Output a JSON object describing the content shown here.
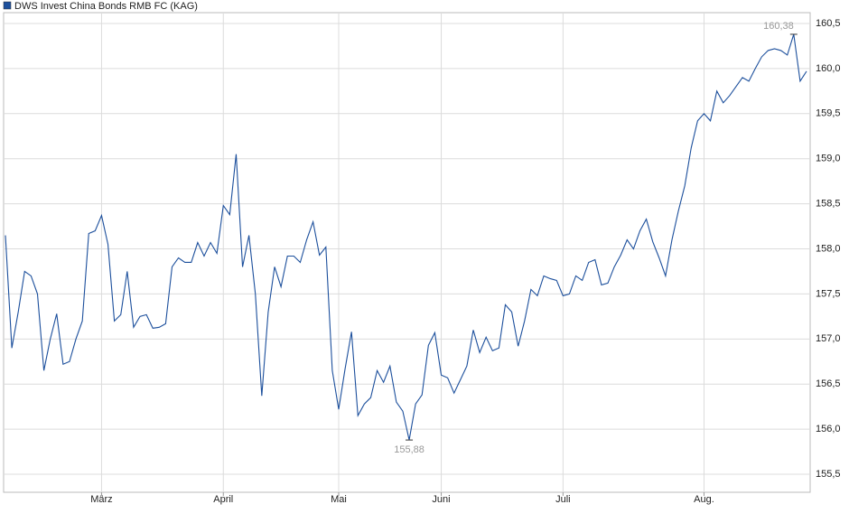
{
  "chart_data": {
    "type": "line",
    "categories": [
      null,
      null,
      null,
      null,
      null,
      null,
      null,
      null,
      null,
      null,
      null,
      null,
      null,
      null,
      null,
      "März",
      null,
      null,
      null,
      null,
      null,
      null,
      null,
      null,
      null,
      null,
      null,
      null,
      null,
      null,
      null,
      null,
      null,
      null,
      "April",
      null,
      null,
      null,
      null,
      null,
      null,
      null,
      null,
      null,
      null,
      null,
      null,
      null,
      null,
      null,
      null,
      null,
      "Mai",
      null,
      null,
      null,
      null,
      null,
      null,
      null,
      null,
      null,
      null,
      null,
      null,
      null,
      null,
      null,
      "Juni",
      null,
      null,
      null,
      null,
      null,
      null,
      null,
      null,
      null,
      null,
      null,
      null,
      null,
      null,
      null,
      null,
      null,
      null,
      "Juli",
      null,
      null,
      null,
      null,
      null,
      null,
      null,
      null,
      null,
      null,
      null,
      null,
      null,
      null,
      null,
      null,
      null,
      null,
      null,
      null,
      null,
      "Aug.",
      null,
      null,
      null,
      null,
      null,
      null,
      null,
      null,
      null,
      null,
      null,
      null,
      null,
      null,
      null,
      null
    ],
    "series": [
      {
        "name": "DWS Invest China Bonds RMB FC (KAG)",
        "color": "#1c4f9c",
        "values": [
          158.15,
          156.9,
          157.3,
          157.75,
          157.7,
          157.5,
          156.65,
          157.0,
          157.28,
          156.72,
          156.75,
          157.0,
          157.2,
          158.17,
          158.2,
          158.37,
          158.05,
          157.2,
          157.27,
          157.75,
          157.13,
          157.25,
          157.27,
          157.12,
          157.13,
          157.17,
          157.8,
          157.9,
          157.85,
          157.85,
          158.07,
          157.92,
          158.07,
          157.95,
          158.48,
          158.38,
          159.05,
          157.8,
          158.15,
          157.5,
          156.37,
          157.3,
          157.8,
          157.58,
          157.92,
          157.92,
          157.85,
          158.1,
          158.3,
          157.93,
          158.02,
          156.65,
          156.22,
          156.67,
          157.08,
          156.15,
          156.28,
          156.35,
          156.65,
          156.52,
          156.7,
          156.3,
          156.2,
          155.88,
          156.28,
          156.38,
          156.93,
          157.07,
          156.6,
          156.57,
          156.4,
          156.55,
          156.7,
          157.1,
          156.85,
          157.02,
          156.87,
          156.9,
          157.38,
          157.3,
          156.92,
          157.2,
          157.55,
          157.48,
          157.7,
          157.67,
          157.65,
          157.48,
          157.5,
          157.7,
          157.65,
          157.85,
          157.88,
          157.6,
          157.62,
          157.8,
          157.93,
          158.1,
          158.0,
          158.2,
          158.33,
          158.08,
          157.9,
          157.7,
          158.1,
          158.42,
          158.7,
          159.12,
          159.42,
          159.5,
          159.42,
          159.75,
          159.62,
          159.7,
          159.8,
          159.9,
          159.86,
          160.0,
          160.13,
          160.2,
          160.22,
          160.2,
          160.15,
          160.38,
          159.86,
          159.97
        ]
      }
    ],
    "annotations": [
      {
        "value": 160.38,
        "label": "160,38"
      },
      {
        "value": 155.88,
        "label": "155,88"
      }
    ],
    "ylim": [
      155.3,
      160.62
    ],
    "yticks": [
      {
        "value": 155.5,
        "label": "155,5"
      },
      {
        "value": 156,
        "label": "156,0"
      },
      {
        "value": 156.5,
        "label": "156,5"
      },
      {
        "value": 157,
        "label": "157,0"
      },
      {
        "value": 157.5,
        "label": "157,5"
      },
      {
        "value": 158,
        "label": "158,0"
      },
      {
        "value": 158.5,
        "label": "158,5"
      },
      {
        "value": 159,
        "label": "159,0"
      },
      {
        "value": 159.5,
        "label": "159,5"
      },
      {
        "value": 160,
        "label": "160,0"
      },
      {
        "value": 160.5,
        "label": "160,5"
      }
    ],
    "grid": true
  }
}
